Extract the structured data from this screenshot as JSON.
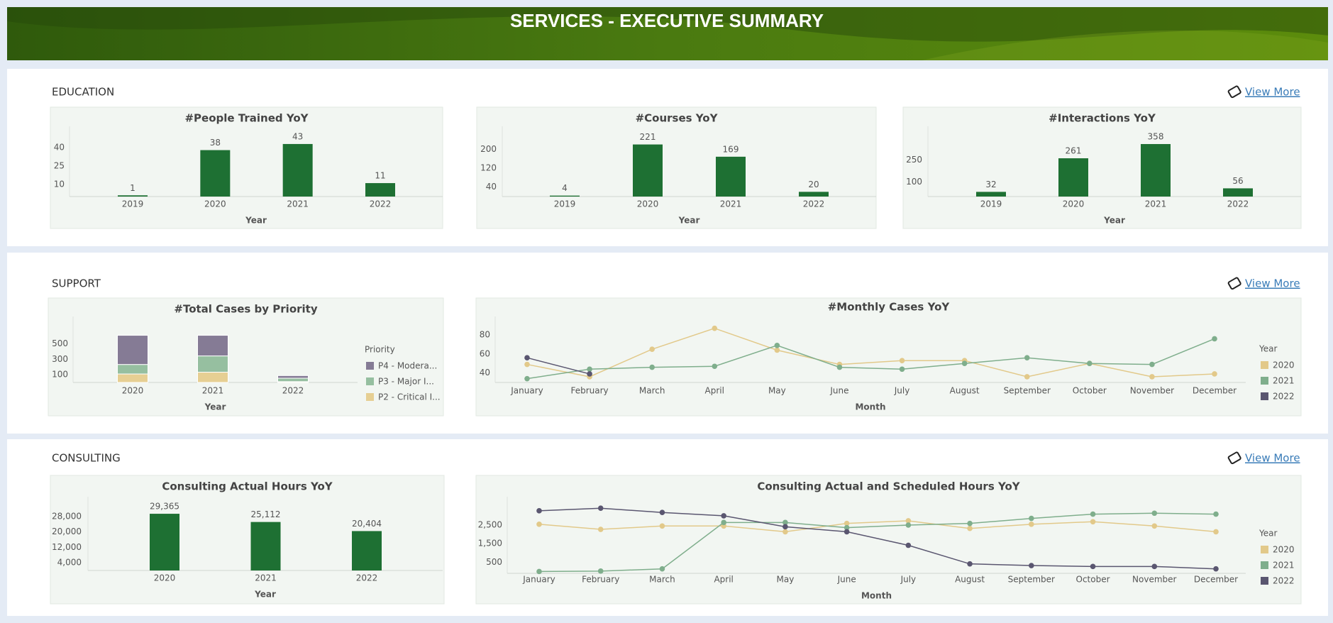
{
  "header": {
    "title": "SERVICES - EXECUTIVE SUMMARY"
  },
  "sections": [
    {
      "title": "EDUCATION",
      "link": "View More"
    },
    {
      "title": "SUPPORT",
      "link": "View More"
    },
    {
      "title": "CONSULTING",
      "link": "View More"
    }
  ],
  "chart_data": [
    {
      "type": "bar",
      "title": "#People Trained YoY",
      "x_label": "Year",
      "categories": [
        "2019",
        "2020",
        "2021",
        "2022"
      ],
      "values": [
        1,
        38,
        43,
        11
      ],
      "color": "#1e7033",
      "ylim": [
        0,
        54
      ],
      "yticks": [
        10,
        25,
        40
      ]
    },
    {
      "type": "bar",
      "title": "#Courses YoY",
      "x_label": "Year",
      "categories": [
        "2019",
        "2020",
        "2021",
        "2022"
      ],
      "values": [
        4,
        221,
        169,
        20
      ],
      "color": "#1e7033",
      "ylim": [
        0,
        280
      ],
      "yticks": [
        40,
        120,
        200
      ]
    },
    {
      "type": "bar",
      "title": "#Interactions YoY",
      "x_label": "Year",
      "categories": [
        "2019",
        "2020",
        "2021",
        "2022"
      ],
      "values": [
        32,
        261,
        358,
        56
      ],
      "color": "#1e7033",
      "ylim": [
        0,
        450
      ],
      "yticks": [
        100,
        250
      ]
    },
    {
      "type": "stacked_bar",
      "title": "#Total Cases by Priority",
      "x_label": "Year",
      "legend_title": "Priority",
      "legend": "right",
      "categories": [
        "2020",
        "2021",
        "2022"
      ],
      "series": [
        {
          "name": "P2 - Critical I...",
          "color": "#e6cf93",
          "values": [
            110,
            133,
            11
          ]
        },
        {
          "name": "P3 - Major I...",
          "color": "#96bfa0",
          "values": [
            123,
            211,
            44
          ]
        },
        {
          "name": "P4 - Modera...",
          "color": "#857b95",
          "values": [
            378,
            267,
            34
          ]
        }
      ],
      "ylim": [
        0,
        800
      ],
      "yticks": [
        100,
        300,
        500
      ]
    },
    {
      "type": "line",
      "title": "#Monthly Cases YoY",
      "x_label": "Month",
      "legend_title": "Year",
      "legend": "right",
      "categories": [
        "January",
        "February",
        "March",
        "April",
        "May",
        "June",
        "July",
        "August",
        "September",
        "October",
        "November",
        "December"
      ],
      "series": [
        {
          "name": "2020",
          "color": "#e2c98a",
          "values": [
            49,
            36,
            65,
            87,
            64,
            49,
            53,
            53,
            36,
            50,
            36,
            39
          ]
        },
        {
          "name": "2021",
          "color": "#7fae8c",
          "values": [
            34,
            44,
            46,
            47,
            69,
            46,
            44,
            50,
            56,
            50,
            49,
            76
          ]
        },
        {
          "name": "2022",
          "color": "#5a5670",
          "values": [
            56,
            39,
            null,
            null,
            null,
            null,
            null,
            null,
            null,
            null,
            null,
            null
          ]
        }
      ],
      "ylim": [
        30,
        95
      ],
      "yticks": [
        40,
        60,
        80
      ]
    },
    {
      "type": "bar",
      "title": "Consulting Actual Hours YoY",
      "x_label": "Year",
      "categories": [
        "2020",
        "2021",
        "2022"
      ],
      "values": [
        29365,
        25112,
        20404
      ],
      "value_labels": [
        "29,365",
        "25,112",
        "20,404"
      ],
      "color": "#1e7033",
      "ylim": [
        0,
        36000
      ],
      "yticks": [
        {
          "value": 4000,
          "label": "4,000"
        },
        {
          "value": 12000,
          "label": "12,000"
        },
        {
          "value": 20000,
          "label": "20,000"
        },
        {
          "value": 28000,
          "label": "28,000"
        }
      ]
    },
    {
      "type": "line",
      "title": "Consulting Actual and Scheduled Hours YoY",
      "x_label": "Month",
      "legend_title": "Year",
      "legend": "right",
      "categories": [
        "January",
        "February",
        "March",
        "April",
        "May",
        "June",
        "July",
        "August",
        "September",
        "October",
        "November",
        "December"
      ],
      "series": [
        {
          "name": "2020",
          "color": "#e2c98a",
          "values": [
            2545,
            2270,
            2450,
            2450,
            2140,
            2590,
            2730,
            2320,
            2545,
            2680,
            2450,
            2140
          ]
        },
        {
          "name": "2021",
          "color": "#7fae8c",
          "values": [
            0,
            20,
            140,
            2640,
            2640,
            2360,
            2500,
            2590,
            2860,
            3090,
            3140,
            3090
          ]
        },
        {
          "name": "2022",
          "color": "#5a5670",
          "values": [
            3270,
            3410,
            3180,
            3000,
            2410,
            2140,
            1410,
            410,
            320,
            270,
            270,
            140
          ]
        }
      ],
      "ylim": [
        -100,
        3800
      ],
      "yticks": [
        500,
        {
          "value": 1500,
          "label": "1,500"
        },
        {
          "value": 2500,
          "label": "2,500"
        }
      ]
    }
  ]
}
